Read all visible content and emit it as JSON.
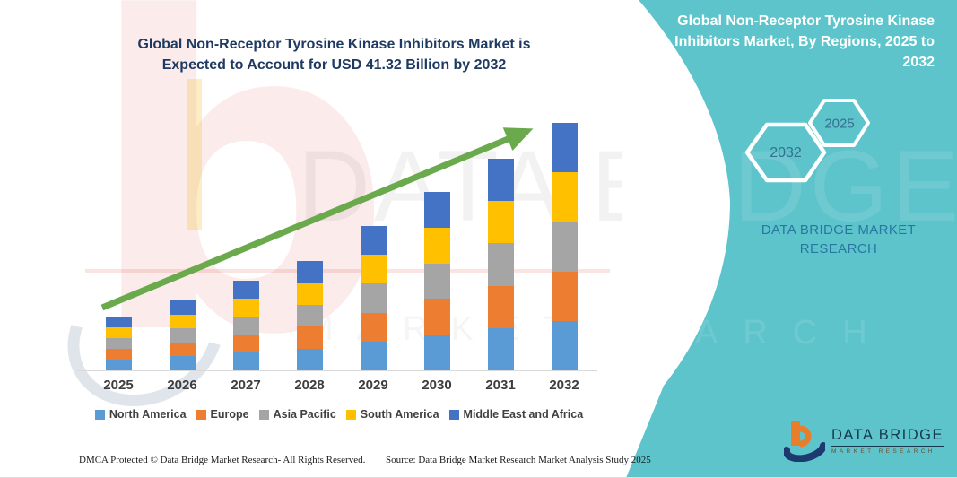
{
  "chart_data": {
    "type": "bar",
    "stacked": true,
    "unit": "USD Billion",
    "title": "Global Non-Receptor Tyrosine Kinase Inhibitors Market is Expected to Account for USD 41.32 Billion by 2032",
    "categories": [
      "2025",
      "2026",
      "2027",
      "2028",
      "2029",
      "2030",
      "2031",
      "2032"
    ],
    "series": [
      {
        "name": "North America",
        "color": "#5B9BD5",
        "values": [
          1.8,
          2.34,
          2.99,
          3.65,
          4.82,
          5.96,
          7.07,
          8.26
        ]
      },
      {
        "name": "Europe",
        "color": "#ED7D31",
        "values": [
          1.8,
          2.34,
          2.99,
          3.65,
          4.82,
          5.96,
          7.07,
          8.26
        ]
      },
      {
        "name": "Asia Pacific",
        "color": "#A5A5A5",
        "values": [
          1.8,
          2.34,
          2.99,
          3.65,
          4.82,
          5.96,
          7.07,
          8.26
        ]
      },
      {
        "name": "South America",
        "color": "#FFC000",
        "values": [
          1.8,
          2.34,
          2.99,
          3.65,
          4.82,
          5.96,
          7.07,
          8.26
        ]
      },
      {
        "name": "Middle East and Africa",
        "color": "#4472C4",
        "values": [
          1.8,
          2.34,
          2.99,
          3.65,
          4.82,
          5.96,
          7.07,
          8.26
        ]
      }
    ],
    "totals": [
      8.98,
      11.68,
      14.97,
      18.26,
      24.1,
      29.79,
      35.33,
      41.32
    ],
    "ylim": [
      0,
      45
    ],
    "grid": false,
    "y_axis_shown": false,
    "legend_position": "bottom",
    "trend_arrow": true,
    "trend_arrow_color": "#6BAA4C",
    "axis_line_color": "#D9D9D9"
  },
  "chart": {
    "title": "Global Non-Receptor Tyrosine Kinase Inhibitors Market is Expected to Account for USD 41.32 Billion by 2032"
  },
  "right_panel": {
    "background": "#5EC4CB",
    "title": "Global Non-Receptor Tyrosine Kinase Inhibitors Market, By Regions, 2025 to 2032",
    "hexagons": {
      "large": "2032",
      "small": "2025"
    },
    "brand_text": "DATA BRIDGE MARKET RESEARCH"
  },
  "logo": {
    "name": "DATA BRIDGE",
    "subtitle": "MARKET RESEARCH"
  },
  "footer": {
    "dmca": "DMCA Protected © Data Bridge Market Research-  All Rights Reserved.",
    "source": "Source: Data Bridge Market Research  Market Analysis Study 2025"
  },
  "watermark": {
    "letter_b": "b",
    "big": "DATA BRI",
    "big_teal": "DGE",
    "row": "MARKET RES",
    "row_teal": "ARCH"
  }
}
